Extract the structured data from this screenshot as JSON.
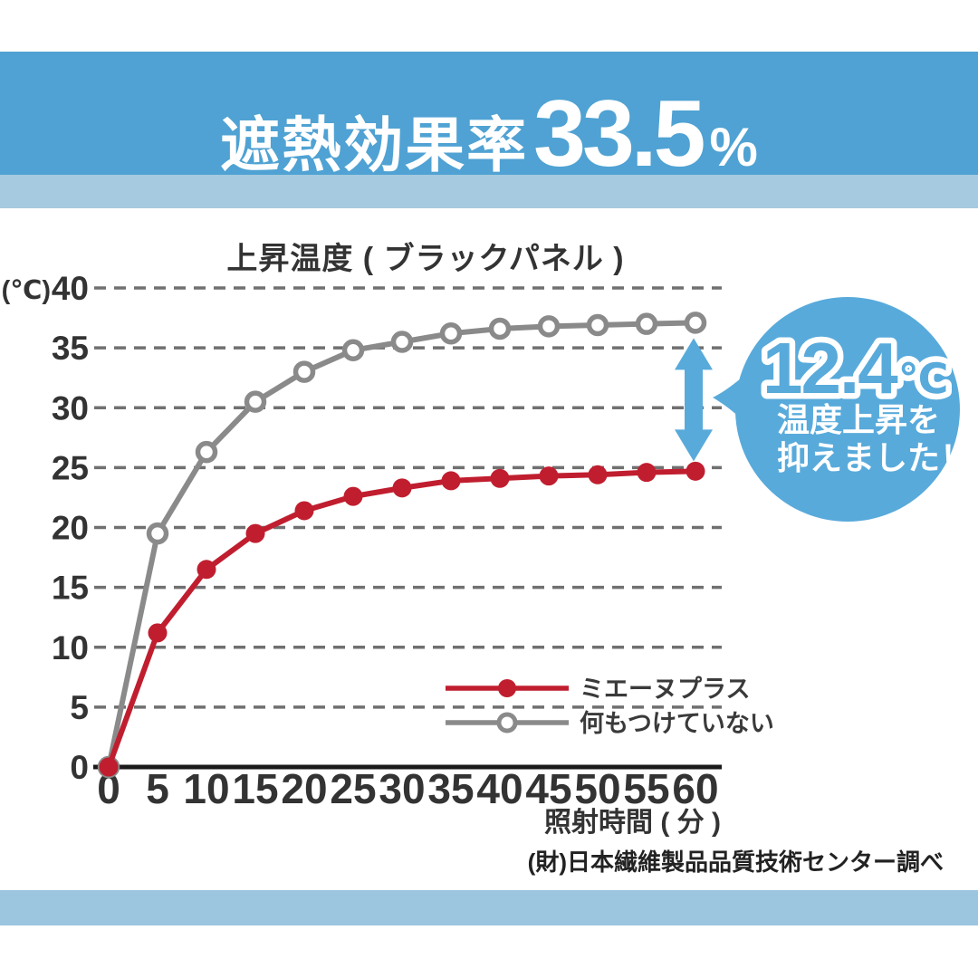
{
  "header": {
    "title_prefix": "遮熱効果率",
    "title_value": "33.5",
    "title_unit": "%"
  },
  "chart_data": {
    "type": "line",
    "title": "上昇温度 ( ブラックパネル )",
    "x": [
      0,
      5,
      10,
      15,
      20,
      25,
      30,
      35,
      40,
      45,
      50,
      55,
      60
    ],
    "xlabel": "照射時間 ( 分 )",
    "ylabel": "(℃)",
    "ylim": [
      0,
      40
    ],
    "ytick_step": 5,
    "grid": "horizontal-dashed",
    "legend_position": "inside-lower-right",
    "series": [
      {
        "name": "ミエーヌプラス",
        "color": "#c01e2f",
        "marker": "filled-circle",
        "values": [
          0,
          11.2,
          16.5,
          19.5,
          21.4,
          22.6,
          23.3,
          23.9,
          24.1,
          24.3,
          24.4,
          24.6,
          24.7
        ]
      },
      {
        "name": "何もつけていない",
        "color": "#8a8a8a",
        "marker": "open-circle",
        "values": [
          0,
          19.5,
          26.3,
          30.5,
          33.0,
          34.8,
          35.5,
          36.2,
          36.6,
          36.8,
          36.9,
          37.0,
          37.1
        ]
      }
    ],
    "annotation": {
      "difference_at_60min_c": 12.4
    }
  },
  "callout": {
    "value": "12.4",
    "unit": "℃",
    "line1": "温度上昇を",
    "line2": "抑えました！"
  },
  "source_note": "(財)日本繊維製品品質技術センター調べ",
  "colors": {
    "header_blue": "#4fa2d3",
    "light_blue_band": "#a6cadf",
    "bottom_blue_band": "#9cc5e0",
    "bubble_blue": "#58aadb",
    "series_red": "#c01e2f",
    "series_gray": "#8a8a8a",
    "grid_gray": "#707070",
    "axis_black": "#1a1a1a",
    "text_dark": "#333333"
  }
}
